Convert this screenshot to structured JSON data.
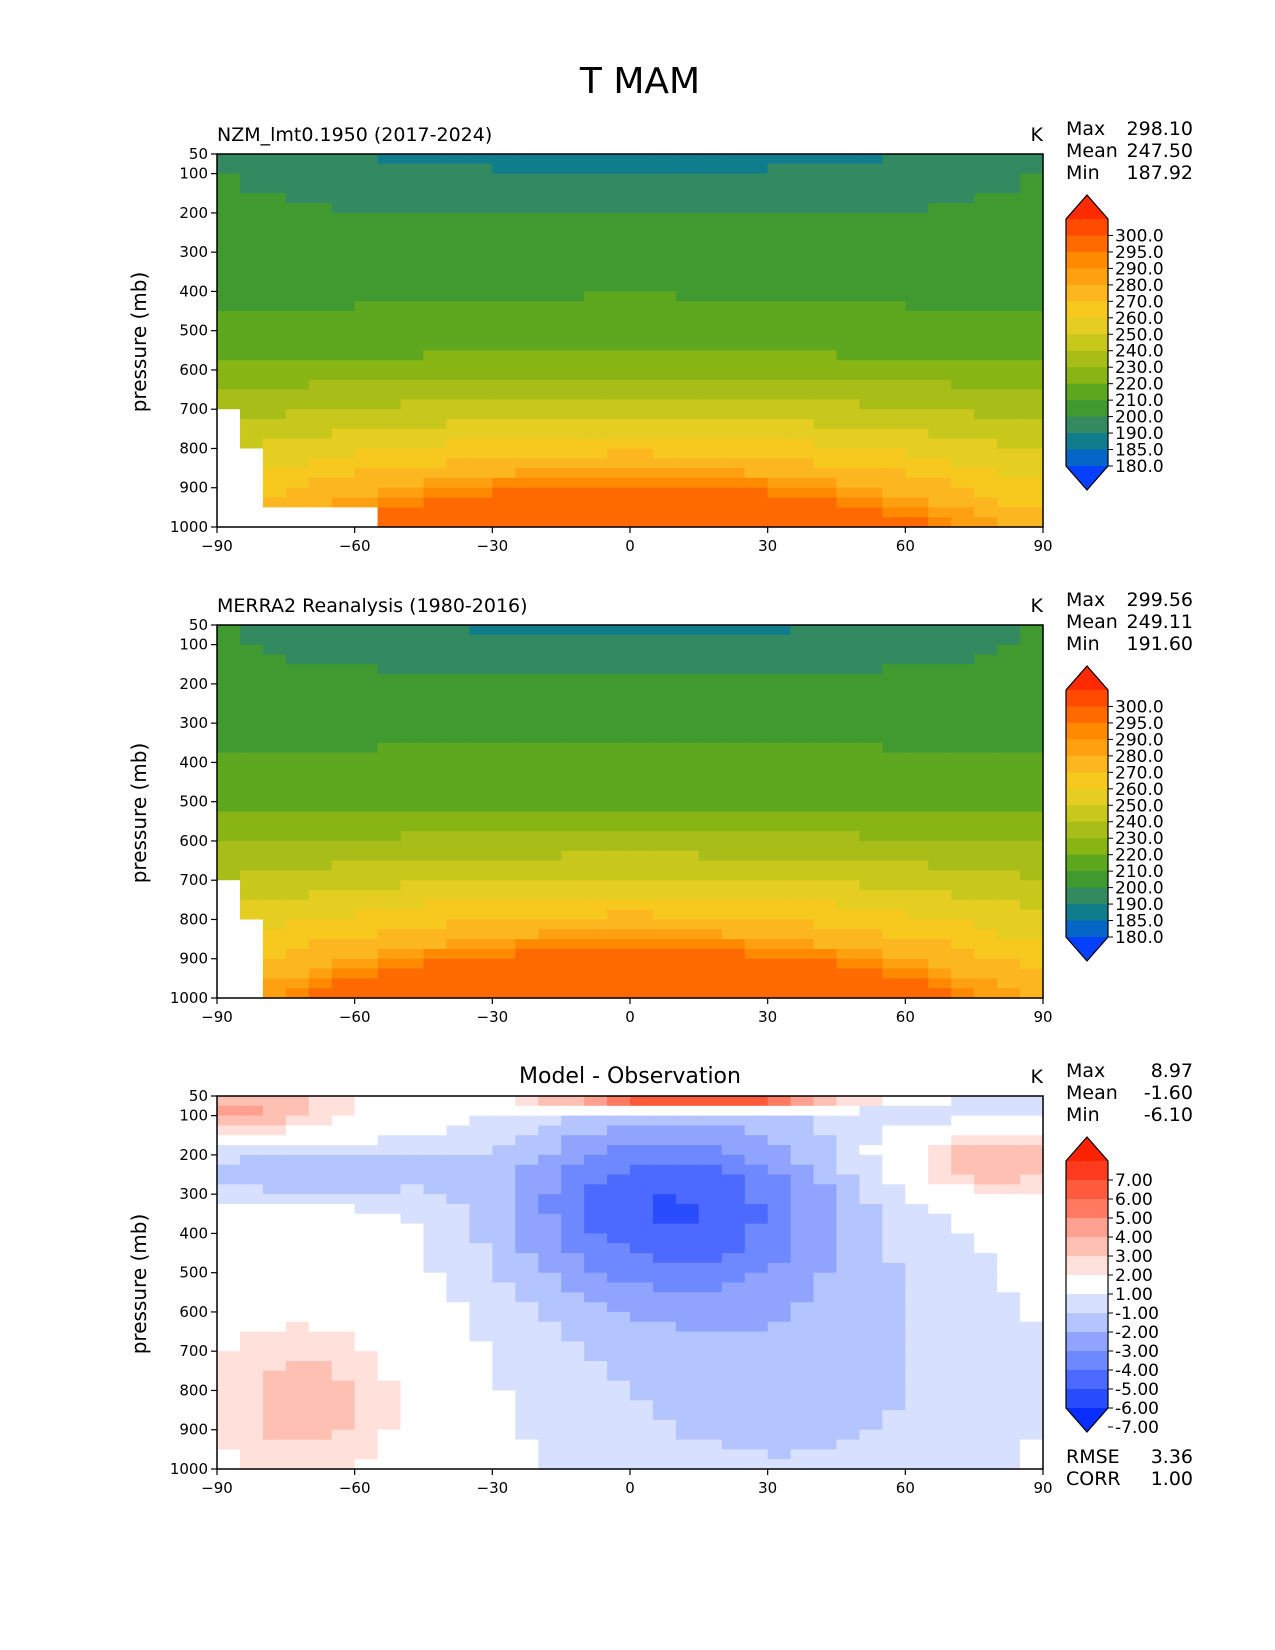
{
  "figure": {
    "title": "T MAM"
  },
  "chart_data": [
    {
      "type": "contourf",
      "title": "NZM_lmt0.1950 (2017-2024)",
      "units": "K",
      "xlabel": "",
      "ylabel": "pressure (mb)",
      "xlim": [
        -90,
        90
      ],
      "ylim": [
        1000,
        50
      ],
      "xticks": [
        "−90",
        "−60",
        "−30",
        "0",
        "30",
        "60",
        "90"
      ],
      "yticks": [
        "50",
        "100",
        "200",
        "300",
        "400",
        "500",
        "600",
        "700",
        "800",
        "900",
        "1000"
      ],
      "ytick_values": [
        50,
        100,
        200,
        300,
        400,
        500,
        600,
        700,
        800,
        900,
        1000
      ],
      "stats": {
        "max_label": "Max",
        "max": "298.10",
        "mean_label": "Mean",
        "mean": "247.50",
        "min_label": "Min",
        "min": "187.92"
      },
      "colorbar": {
        "labels": [
          "300.0",
          "295.0",
          "290.0",
          "280.0",
          "270.0",
          "260.0",
          "250.0",
          "240.0",
          "230.0",
          "220.0",
          "210.0",
          "200.0",
          "190.0",
          "185.0",
          "180.0"
        ],
        "colors": [
          "#ff2a00",
          "#ff4a00",
          "#ff6a00",
          "#ff8a00",
          "#ffa010",
          "#fcb720",
          "#f7c81e",
          "#e6cd22",
          "#c8c81c",
          "#a8bd18",
          "#88b514",
          "#5ea820",
          "#409a30",
          "#348a60",
          "#107d8d",
          "#0566c8",
          "#0540ff"
        ]
      },
      "field": {
        "params": [
          221,
          293,
          195,
          500,
          187.92
        ]
      }
    },
    {
      "type": "contourf",
      "title": "MERRA2 Reanalysis (1980-2016)",
      "units": "K",
      "xlabel": "",
      "ylabel": "pressure (mb)",
      "xlim": [
        -90,
        90
      ],
      "ylim": [
        1000,
        50
      ],
      "xticks": [
        "−90",
        "−60",
        "−30",
        "0",
        "30",
        "60",
        "90"
      ],
      "yticks": [
        "50",
        "100",
        "200",
        "300",
        "400",
        "500",
        "600",
        "700",
        "800",
        "900",
        "1000"
      ],
      "ytick_values": [
        50,
        100,
        200,
        300,
        400,
        500,
        600,
        700,
        800,
        900,
        1000
      ],
      "stats": {
        "max_label": "Max",
        "max": "299.56",
        "mean_label": "Mean",
        "mean": "249.11",
        "min_label": "Min",
        "min": "191.60"
      },
      "colorbar": {
        "labels": [
          "300.0",
          "295.0",
          "290.0",
          "280.0",
          "270.0",
          "260.0",
          "250.0",
          "240.0",
          "230.0",
          "220.0",
          "210.0",
          "200.0",
          "190.0",
          "185.0",
          "180.0"
        ],
        "colors": [
          "#ff2a00",
          "#ff4a00",
          "#ff6a00",
          "#ff8a00",
          "#ffa010",
          "#fcb720",
          "#f7c81e",
          "#e6cd22",
          "#c8c81c",
          "#a8bd18",
          "#88b514",
          "#5ea820",
          "#409a30",
          "#348a60",
          "#107d8d",
          "#0566c8",
          "#0540ff"
        ]
      },
      "field": {
        "params": [
          222,
          296,
          197,
          460,
          191.6
        ]
      }
    },
    {
      "type": "contourf",
      "title": "Model - Observation",
      "units": "K",
      "xlabel": "",
      "ylabel": "pressure (mb)",
      "xlim": [
        -90,
        90
      ],
      "ylim": [
        1000,
        50
      ],
      "xticks": [
        "−90",
        "−60",
        "−30",
        "0",
        "30",
        "60",
        "90"
      ],
      "yticks": [
        "50",
        "100",
        "200",
        "300",
        "400",
        "500",
        "600",
        "700",
        "800",
        "900",
        "1000"
      ],
      "ytick_values": [
        50,
        100,
        200,
        300,
        400,
        500,
        600,
        700,
        800,
        900,
        1000
      ],
      "stats": {
        "max_label": "Max",
        "max": "8.97",
        "mean_label": "Mean",
        "mean": "-1.60",
        "min_label": "Min",
        "min": "-6.10"
      },
      "extra_stats": {
        "rmse_label": "RMSE",
        "rmse": "3.36",
        "corr_label": "CORR",
        "corr": "1.00"
      },
      "colorbar": {
        "labels": [
          "7.00",
          "6.00",
          "5.00",
          "4.00",
          "3.00",
          "2.00",
          "1.00",
          "-1.00",
          "-2.00",
          "-3.00",
          "-4.00",
          "-5.00",
          "-6.00",
          "-7.00"
        ],
        "colors": [
          "#ff2200",
          "#ff3b1f",
          "#ff5a3c",
          "#ff7a60",
          "#ffa090",
          "#ffc0b4",
          "#ffe0da",
          "#ffffff",
          "#d8e0ff",
          "#b4c4ff",
          "#90a4ff",
          "#6e88ff",
          "#4c6aff",
          "#2a4cff",
          "#0a2eff"
        ]
      },
      "field": {
        "params": [
          0,
          0,
          0,
          0,
          0
        ]
      }
    }
  ]
}
